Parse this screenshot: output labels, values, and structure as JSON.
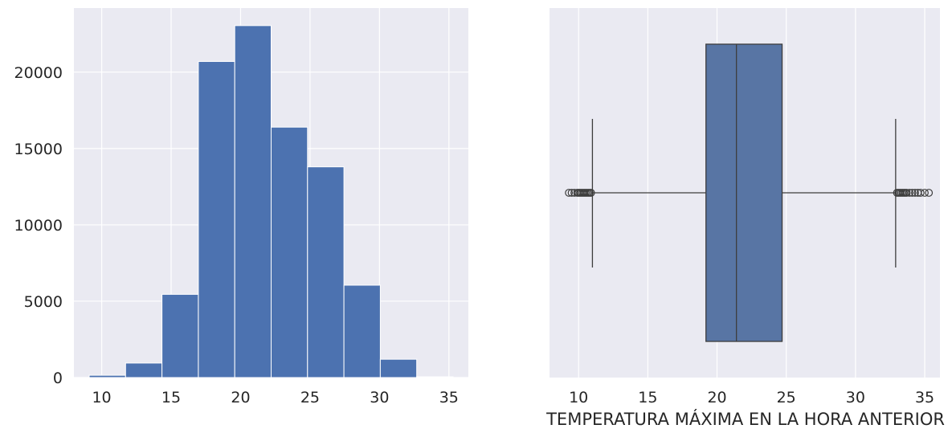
{
  "colors": {
    "background": "#eaeaf2",
    "grid": "#ffffff",
    "bar_fill": "#4c72b0",
    "box_fill": "#5875a4",
    "box_edge": "#3d3d3d",
    "text": "#262626"
  },
  "chart_data": [
    {
      "type": "bar",
      "subtype": "histogram",
      "bin_edges": [
        9.1,
        11.72,
        14.34,
        16.96,
        19.58,
        22.2,
        24.82,
        27.44,
        30.06,
        32.68,
        35.3
      ],
      "values": [
        150,
        950,
        5450,
        20700,
        23050,
        16400,
        13800,
        6050,
        1200,
        50
      ],
      "xlim": [
        8.0,
        36.4
      ],
      "ylim": [
        0,
        24200
      ],
      "xticks": [
        "10",
        "15",
        "20",
        "25",
        "30",
        "35"
      ],
      "yticks": [
        "0",
        "5000",
        "10000",
        "15000",
        "20000"
      ],
      "grid": true,
      "xlabel": "",
      "ylabel": ""
    },
    {
      "type": "boxplot",
      "orientation": "horizontal",
      "whisker_low": 11.0,
      "q1": 19.2,
      "median": 21.4,
      "q3": 24.7,
      "whisker_high": 32.9,
      "outliers_low": [
        9.3,
        9.5,
        9.7,
        9.9,
        10.0,
        10.1,
        10.2,
        10.3,
        10.4,
        10.5,
        10.6,
        10.7,
        10.8,
        10.9
      ],
      "outliers_high": [
        33.0,
        33.1,
        33.2,
        33.3,
        33.4,
        33.5,
        33.6,
        33.7,
        33.9,
        34.1,
        34.3,
        34.5,
        34.7,
        35.0,
        35.3
      ],
      "xlim": [
        7.9,
        36.1
      ],
      "xticks": [
        "10",
        "15",
        "20",
        "25",
        "30",
        "35"
      ],
      "grid": true,
      "xlabel": "TEMPERATURA MÁXIMA EN LA HORA ANTERIOR",
      "ylabel": ""
    }
  ]
}
